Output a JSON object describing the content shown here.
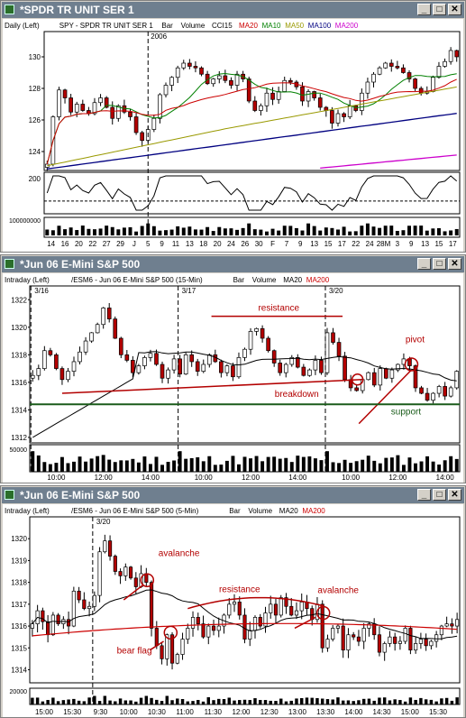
{
  "windows": [
    {
      "title": "*SPDR TR UNIT SER 1",
      "legend": [
        "Daily (Left)",
        "SPY - SPDR TR UNIT SER 1",
        "Bar",
        "Volume",
        "CCI15",
        "MA20",
        "MA10",
        "MA50",
        "MA100",
        "MA200"
      ],
      "legend_colors": [
        "#000000",
        "#000000",
        "#000000",
        "#000000",
        "#000000",
        "#cc0000",
        "#008000",
        "#999900",
        "#000080",
        "#cc00cc"
      ],
      "date_marker": "2006",
      "price_ticks": [
        "130",
        "128",
        "126",
        "124"
      ],
      "cci_ticks": [
        "200",
        "-200"
      ],
      "volume_tick": "100000000",
      "x_labels": [
        "14",
        "16",
        "20",
        "22",
        "27",
        "29",
        "J",
        "5",
        "9",
        "11",
        "13",
        "18",
        "20",
        "24",
        "26",
        "30",
        "F",
        "7",
        "9",
        "13",
        "15",
        "17",
        "22",
        "24",
        "28M",
        "3",
        "9",
        "13",
        "15",
        "17"
      ],
      "annotations": []
    },
    {
      "title": "*Jun 06  E-Mini S&P 500",
      "legend": [
        "Intraday (Left)",
        "/ESM6 - Jun 06  E-Mini S&P 500 (15-Min)",
        "Bar",
        "Volume",
        "MA20",
        "MA200"
      ],
      "legend_colors": [
        "#000000",
        "#000000",
        "#000000",
        "#000000",
        "#000000",
        "#cc0000"
      ],
      "date_markers": [
        "3/16",
        "3/17",
        "3/20"
      ],
      "price_ticks": [
        "1322",
        "1320",
        "1318",
        "1316",
        "1314",
        "1312"
      ],
      "volume_tick": "50000",
      "x_labels": [
        "10:00",
        "12:00",
        "14:00",
        "10:00",
        "12:00",
        "14:00",
        "10:00",
        "12:00",
        "14:00"
      ],
      "annotations": [
        "resistance",
        "breakdown",
        "pivot",
        "support"
      ]
    },
    {
      "title": "*Jun 06  E-Mini S&P 500",
      "legend": [
        "Intraday (Left)",
        "/ESM6 - Jun 06  E-Mini S&P 500 (5-Min)",
        "Bar",
        "Volume",
        "MA20",
        "MA200"
      ],
      "legend_colors": [
        "#000000",
        "#000000",
        "#000000",
        "#000000",
        "#000000",
        "#cc0000"
      ],
      "date_marker": "3/20",
      "price_ticks": [
        "1320",
        "1319",
        "1318",
        "1317",
        "1316",
        "1315",
        "1314"
      ],
      "volume_tick": "20000",
      "x_labels": [
        "15:00",
        "15:30",
        "9:30",
        "10:00",
        "10:30",
        "11:00",
        "11:30",
        "12:00",
        "12:30",
        "13:00",
        "13:30",
        "14:00",
        "14:30",
        "15:00",
        "15:30"
      ],
      "annotations": [
        "avalanche",
        "bear flag",
        "resistance",
        "avalanche"
      ]
    }
  ],
  "window_buttons": [
    "_",
    "□",
    "✕"
  ],
  "colors": {
    "up": "#ffffff",
    "down": "#b30000",
    "ma_black": "#000000",
    "ma_red": "#cc0000",
    "ma_green": "#008000",
    "ma_olive": "#999900",
    "ma_navy": "#000080",
    "ma_magenta": "#cc00cc",
    "annotation": "#b30000",
    "support_line": "#1a5c1a"
  },
  "chart_data": [
    {
      "type": "candlestick",
      "period": "Daily",
      "ylim": [
        122.8,
        131.6
      ],
      "closes": [
        123.2,
        126.2,
        127.9,
        127.4,
        126.5,
        127.0,
        126.6,
        126.4,
        127.1,
        127.4,
        126.8,
        126.1,
        126.9,
        126.5,
        126.2,
        125.2,
        124.7,
        125.4,
        126.1,
        127.6,
        128.2,
        128.7,
        129.3,
        129.6,
        129.4,
        129.3,
        128.9,
        128.3,
        128.6,
        128.8,
        128.5,
        128.2,
        128.9,
        128.6,
        127.2,
        126.6,
        126.9,
        127.7,
        127.3,
        127.8,
        128.5,
        128.4,
        128.1,
        127.2,
        127.8,
        127.4,
        126.8,
        126.6,
        125.8,
        126.4,
        126.2,
        126.9,
        126.6,
        127.7,
        128.4,
        128.9,
        129.3,
        129.6,
        129.4,
        129.3,
        129.0,
        128.6,
        128.0,
        127.7,
        127.8,
        128.7,
        129.4,
        129.7,
        130.4,
        130.0
      ],
      "cci_ylim": [
        -200,
        200
      ],
      "volume_ylim": [
        0,
        130000000
      ]
    },
    {
      "type": "candlestick",
      "period": "15-Min",
      "ylim": [
        1311.6,
        1323.0
      ],
      "closes": [
        1316.5,
        1317.0,
        1318.3,
        1318.0,
        1317.0,
        1316.2,
        1316.8,
        1317.5,
        1318.2,
        1319.0,
        1319.6,
        1320.2,
        1321.4,
        1320.6,
        1319.2,
        1318.0,
        1317.6,
        1316.7,
        1317.2,
        1317.8,
        1318.1,
        1317.3,
        1316.3,
        1316.9,
        1317.7,
        1316.6,
        1318.0,
        1317.5,
        1316.8,
        1317.3,
        1318.0,
        1317.5,
        1316.7,
        1317.2,
        1316.4,
        1317.8,
        1318.4,
        1319.7,
        1319.9,
        1319.2,
        1318.3,
        1317.4,
        1316.7,
        1317.3,
        1317.8,
        1317.1,
        1316.5,
        1316.9,
        1317.6,
        1316.7,
        1319.6,
        1318.9,
        1317.9,
        1316.2,
        1315.6,
        1315.4,
        1316.2,
        1316.7,
        1315.8,
        1317.0,
        1316.3,
        1316.9,
        1317.3,
        1317.7,
        1317.2,
        1315.6,
        1315.2,
        1314.7,
        1315.2,
        1315.7,
        1315.0,
        1315.6,
        1316.8
      ],
      "volume_ylim": [
        0,
        60000
      ],
      "resistance_level": 1320.8,
      "support_level": 1314.4
    },
    {
      "type": "candlestick",
      "period": "5-Min",
      "ylim": [
        1313.4,
        1321.0
      ],
      "closes": [
        1316.1,
        1316.7,
        1316.2,
        1315.6,
        1316.5,
        1316.1,
        1316.3,
        1316.0,
        1317.6,
        1317.2,
        1316.8,
        1316.9,
        1317.4,
        1319.4,
        1319.9,
        1319.2,
        1318.5,
        1318.3,
        1318.7,
        1318.2,
        1317.8,
        1318.4,
        1318.0,
        1315.9,
        1315.1,
        1314.5,
        1315.6,
        1314.3,
        1314.7,
        1315.4,
        1315.9,
        1316.4,
        1316.1,
        1315.5,
        1316.0,
        1315.8,
        1316.0,
        1316.5,
        1317.0,
        1317.1,
        1316.5,
        1315.4,
        1315.8,
        1316.4,
        1316.0,
        1316.6,
        1317.0,
        1316.5,
        1317.3,
        1316.9,
        1316.5,
        1316.7,
        1317.1,
        1316.8,
        1316.3,
        1317.0,
        1315.0,
        1315.4,
        1315.9,
        1316.0,
        1314.9,
        1315.6,
        1315.5,
        1315.3,
        1315.9,
        1316.1,
        1315.6,
        1314.8,
        1315.2,
        1315.5,
        1315.2,
        1315.3,
        1315.9,
        1314.9,
        1315.2,
        1315.4,
        1315.1,
        1315.3,
        1315.6,
        1316.0,
        1316.1,
        1316.0,
        1316.3
      ],
      "volume_ylim": [
        0,
        25000
      ],
      "resistance_level": 1317.3
    }
  ]
}
